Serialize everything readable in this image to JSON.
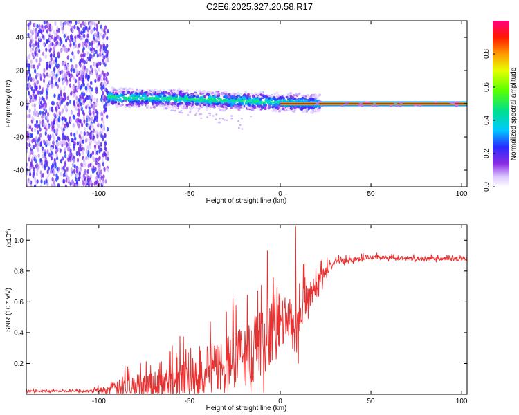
{
  "title": "C2E6.2025.327.20.58.R17",
  "chart_data": [
    {
      "type": "heatmap",
      "name": "spectrogram",
      "xlabel": "Height of straight line (km)",
      "ylabel": "Frequency (Hz)",
      "xlim": [
        -140,
        103
      ],
      "ylim": [
        -50,
        50
      ],
      "xticks": [
        -100,
        -50,
        0,
        50,
        100
      ],
      "xtick_labels": [
        "-100",
        "-50",
        "0",
        "50",
        "100"
      ],
      "yticks": [
        -40,
        -20,
        0,
        20,
        40
      ],
      "ytick_labels": [
        "-40",
        "-20",
        "0",
        "20",
        "40"
      ],
      "colorbar": {
        "label": "Normalized spectral amplitude",
        "range": [
          0,
          1
        ],
        "ticks": [
          0.0,
          0.2,
          0.4,
          0.6,
          0.8
        ],
        "tick_labels": [
          "0.0",
          "0.2",
          "0.4",
          "0.6",
          "0.8"
        ]
      },
      "regions": [
        {
          "desc": "noise",
          "x": [
            -140,
            -95
          ],
          "freq": [
            -50,
            50
          ],
          "amp": 0.15
        },
        {
          "desc": "echo band",
          "x": [
            -95,
            22
          ],
          "center_freq": [
            4,
            3,
            2,
            1,
            0
          ],
          "center_x": [
            -95,
            -60,
            -30,
            0,
            20
          ],
          "amp": 0.4
        },
        {
          "desc": "steady line",
          "x": [
            0,
            103
          ],
          "center_freq": 0,
          "amp": 0.95
        }
      ]
    },
    {
      "type": "line",
      "name": "snr",
      "xlabel": "Height of straight line (km)",
      "ylabel": "SNR (10 * v/v)",
      "yscale_label": "(x10",
      "yscale_exp": "4",
      "yscale_close": ")",
      "xlim": [
        -140,
        103
      ],
      "ylim": [
        0,
        1.1
      ],
      "xticks": [
        -100,
        -50,
        0,
        50,
        100
      ],
      "xtick_labels": [
        "-100",
        "-50",
        "0",
        "50",
        "100"
      ],
      "yticks": [
        0.2,
        0.4,
        0.6,
        0.8,
        1.0
      ],
      "ytick_labels": [
        "0.2",
        "0.4",
        "0.6",
        "0.8",
        "1.0"
      ],
      "color": "#e83232",
      "envelope": {
        "x": [
          -140,
          -105,
          -95,
          -85,
          -70,
          -50,
          -30,
          -15,
          -5,
          5,
          8,
          12,
          20,
          30,
          50,
          80,
          103
        ],
        "base": [
          0.02,
          0.02,
          0.03,
          0.05,
          0.07,
          0.12,
          0.2,
          0.28,
          0.38,
          0.5,
          0.4,
          0.55,
          0.72,
          0.86,
          0.89,
          0.88,
          0.88
        ],
        "amp": [
          0.01,
          0.01,
          0.05,
          0.1,
          0.14,
          0.2,
          0.28,
          0.33,
          0.3,
          0.2,
          0.3,
          0.2,
          0.1,
          0.03,
          0.02,
          0.02,
          0.02
        ]
      },
      "peaks": [
        {
          "x": 8.5,
          "y": 1.09
        },
        {
          "x": -7,
          "y": 0.93
        },
        {
          "x": 10,
          "y": 0.2
        }
      ]
    }
  ]
}
